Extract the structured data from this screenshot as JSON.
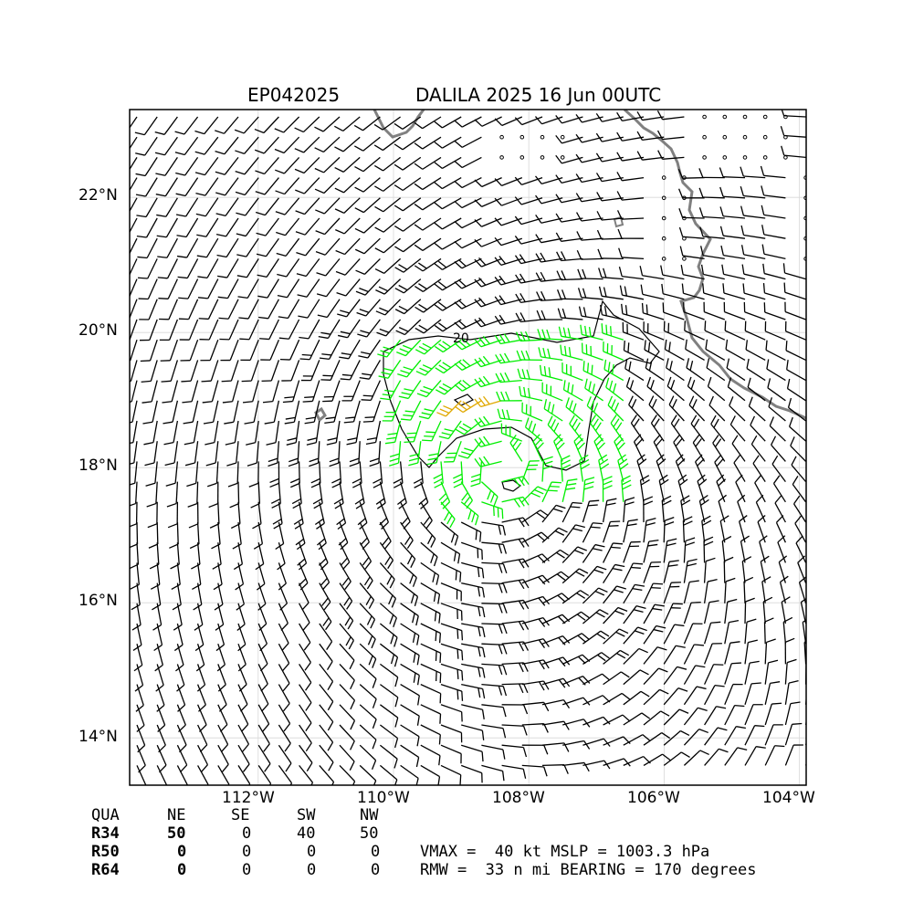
{
  "header": {
    "storm_id": "EP042025",
    "title": "DALILA 2025 16 Jun 00UTC"
  },
  "map": {
    "lon_range": [
      -113.9,
      -103.9
    ],
    "lat_range": [
      13.3,
      23.3
    ],
    "lat_ticks": [
      "22°N",
      "20°N",
      "18°N",
      "16°N",
      "14°N"
    ],
    "lon_ticks": [
      "112°W",
      "110°W",
      "108°W",
      "106°W",
      "104°W"
    ],
    "center": {
      "lon": -108.4,
      "lat": 18.0
    },
    "contour_label": "20",
    "colors": {
      "coast": "#808080",
      "barb": "#000000",
      "r34": "#00ee00",
      "r50": "#e0a800"
    },
    "grid": true
  },
  "radii_table": {
    "header": [
      "QUA",
      "NE",
      "SE",
      "SW",
      "NW"
    ],
    "rows": [
      {
        "label": "R34",
        "values": [
          "50",
          "0",
          "40",
          "50"
        ]
      },
      {
        "label": "R50",
        "values": [
          "0",
          "0",
          "0",
          "0"
        ]
      },
      {
        "label": "R64",
        "values": [
          "0",
          "0",
          "0",
          "0"
        ]
      }
    ]
  },
  "info": {
    "line1": "VMAX =  40 kt MSLP = 1003.3 hPa",
    "line2": "RMW =  33 n mi BEARING = 170 degrees"
  }
}
